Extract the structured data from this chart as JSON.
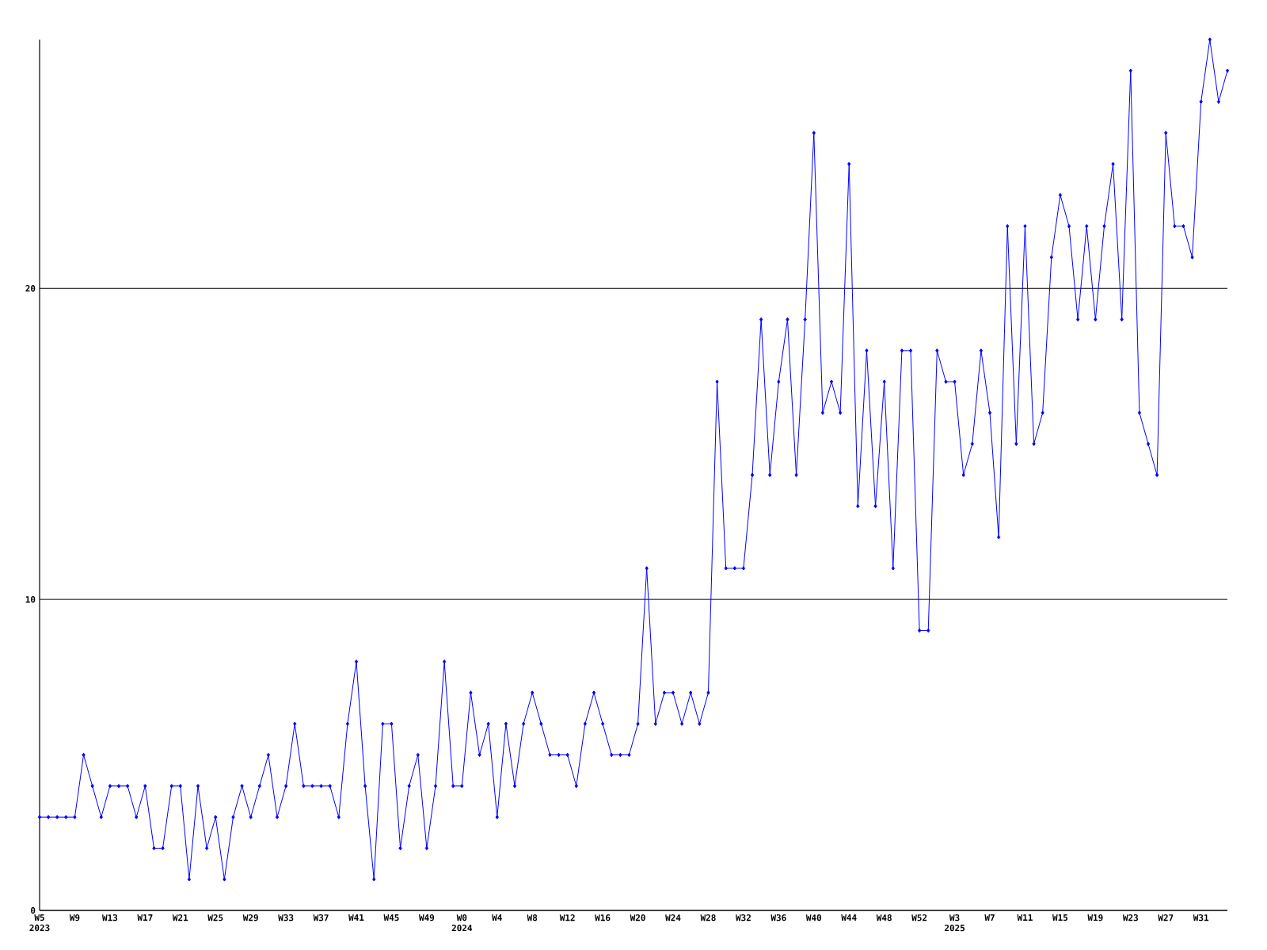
{
  "chart_data": {
    "type": "line",
    "categories": [
      "W5 2023",
      null,
      null,
      null,
      "W9",
      null,
      null,
      null,
      "W13",
      null,
      null,
      null,
      "W17",
      null,
      null,
      null,
      "W21",
      null,
      null,
      null,
      "W25",
      null,
      null,
      null,
      "W29",
      null,
      null,
      null,
      "W33",
      null,
      null,
      null,
      "W37",
      null,
      null,
      null,
      "W41",
      null,
      null,
      null,
      "W45",
      null,
      null,
      null,
      "W49",
      null,
      null,
      null,
      "W0 2024",
      null,
      null,
      null,
      "W4",
      null,
      null,
      null,
      "W8",
      null,
      null,
      null,
      "W12",
      null,
      null,
      null,
      "W16",
      null,
      null,
      null,
      "W20",
      null,
      null,
      null,
      "W24",
      null,
      null,
      null,
      "W28",
      null,
      null,
      null,
      "W32",
      null,
      null,
      null,
      "W36",
      null,
      null,
      null,
      "W40",
      null,
      null,
      null,
      "W44",
      null,
      null,
      null,
      "W48",
      null,
      null,
      null,
      "W52",
      null,
      null,
      null,
      "W3 2025",
      null,
      null,
      null,
      "W7",
      null,
      null,
      null,
      "W11",
      null,
      null,
      null,
      "W15",
      null,
      null,
      null,
      "W19",
      null,
      null,
      null,
      "W23",
      null,
      null,
      null,
      "W27",
      null,
      null,
      null,
      "W31",
      null,
      null,
      null
    ],
    "values": [
      3,
      3,
      3,
      3,
      3,
      5,
      4,
      3,
      4,
      4,
      4,
      3,
      4,
      2,
      2,
      4,
      4,
      1,
      4,
      2,
      3,
      1,
      3,
      4,
      3,
      4,
      5,
      3,
      4,
      6,
      4,
      4,
      4,
      4,
      3,
      6,
      8,
      4,
      1,
      6,
      6,
      2,
      4,
      5,
      2,
      4,
      8,
      4,
      4,
      7,
      5,
      6,
      3,
      6,
      4,
      6,
      7,
      6,
      5,
      5,
      5,
      4,
      6,
      7,
      6,
      5,
      5,
      5,
      6,
      11,
      6,
      7,
      7,
      6,
      7,
      6,
      7,
      17,
      11,
      11,
      11,
      14,
      19,
      14,
      17,
      19,
      14,
      19,
      25,
      16,
      17,
      16,
      24,
      13,
      18,
      13,
      17,
      11,
      18,
      18,
      9,
      9,
      18,
      17,
      17,
      14,
      15,
      18,
      16,
      12,
      22,
      15,
      22,
      15,
      16,
      21,
      23,
      22,
      19,
      22,
      19,
      22,
      24,
      19,
      27,
      16,
      15,
      14,
      25,
      22,
      22,
      21,
      26,
      28,
      26,
      27
    ],
    "color": "#0000ff",
    "marker": "diamond",
    "grid": "y",
    "ylim": [
      0,
      28
    ],
    "yticks": [
      0,
      10,
      20
    ]
  }
}
